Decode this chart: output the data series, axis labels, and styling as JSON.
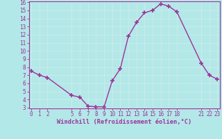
{
  "x": [
    0,
    1,
    2,
    5,
    6,
    7,
    8,
    9,
    10,
    11,
    12,
    13,
    14,
    15,
    16,
    17,
    18,
    21,
    22,
    23
  ],
  "y": [
    7.5,
    7.0,
    6.7,
    4.5,
    4.3,
    3.2,
    3.1,
    3.1,
    6.3,
    7.8,
    11.8,
    13.5,
    14.7,
    15.0,
    15.8,
    15.5,
    14.8,
    8.5,
    7.0,
    6.5
  ],
  "line_color": "#993399",
  "marker": "+",
  "bg_color": "#b3e8e8",
  "grid_color": "#d0eaea",
  "xlabel": "Windchill (Refroidissement éolien,°C)",
  "xlabel_color": "#993399",
  "tick_color": "#993399",
  "spine_color": "#993399",
  "ylim": [
    3,
    16
  ],
  "yticks": [
    3,
    4,
    5,
    6,
    7,
    8,
    9,
    10,
    11,
    12,
    13,
    14,
    15,
    16
  ],
  "xticks": [
    0,
    1,
    2,
    5,
    6,
    7,
    8,
    9,
    10,
    11,
    12,
    13,
    14,
    15,
    16,
    17,
    18,
    21,
    22,
    23
  ],
  "xlim": [
    -0.3,
    23.3
  ],
  "font_size": 5.5,
  "xlabel_fontsize": 6.2,
  "line_width": 1.0,
  "marker_size": 4,
  "marker_edge_width": 1.2
}
